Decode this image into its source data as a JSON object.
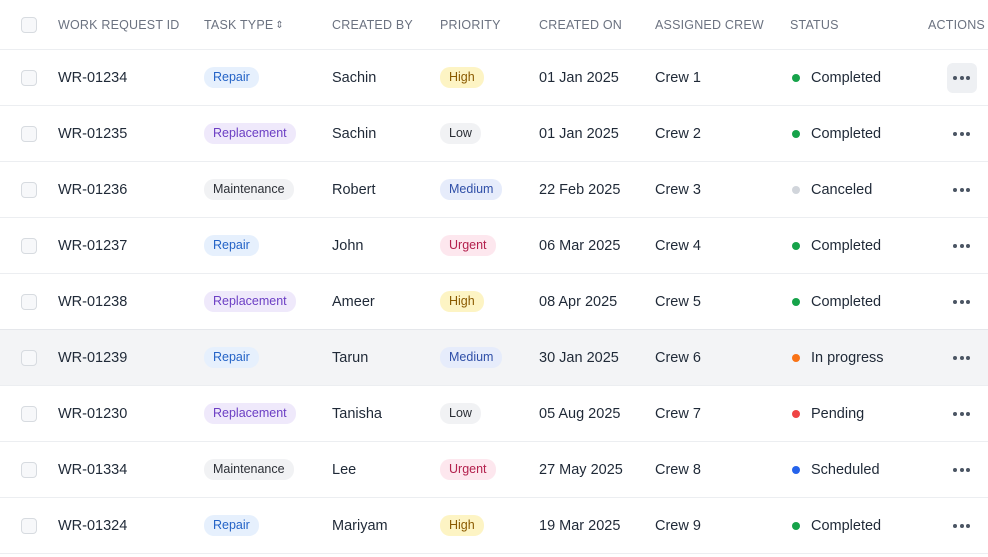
{
  "columns": {
    "work_request_id": "WORK REQUEST ID",
    "task_type": "TASK TYPE",
    "created_by": "CREATED BY",
    "priority": "PRIORITY",
    "created_on": "CREATED ON",
    "assigned_crew": "ASSIGNED CREW",
    "status": "STATUS",
    "actions": "ACTIONS"
  },
  "colors": {
    "completed": "#16a34a",
    "canceled": "#d1d5db",
    "in_progress": "#f97316",
    "pending": "#ef4444",
    "scheduled": "#2563eb"
  },
  "rows": [
    {
      "id": "WR-01234",
      "task_type": "Repair",
      "created_by": "Sachin",
      "priority": "High",
      "created_on": "01 Jan 2025",
      "crew": "Crew 1",
      "status": "Completed"
    },
    {
      "id": "WR-01235",
      "task_type": "Replacement",
      "created_by": "Sachin",
      "priority": "Low",
      "created_on": "01 Jan 2025",
      "crew": "Crew 2",
      "status": "Completed"
    },
    {
      "id": "WR-01236",
      "task_type": "Maintenance",
      "created_by": "Robert",
      "priority": "Medium",
      "created_on": "22 Feb 2025",
      "crew": "Crew 3",
      "status": "Canceled"
    },
    {
      "id": "WR-01237",
      "task_type": "Repair",
      "created_by": "John",
      "priority": "Urgent",
      "created_on": "06 Mar 2025",
      "crew": "Crew 4",
      "status": "Completed"
    },
    {
      "id": "WR-01238",
      "task_type": "Replacement",
      "created_by": "Ameer",
      "priority": "High",
      "created_on": "08 Apr 2025",
      "crew": "Crew 5",
      "status": "Completed"
    },
    {
      "id": "WR-01239",
      "task_type": "Repair",
      "created_by": "Tarun",
      "priority": "Medium",
      "created_on": "30 Jan 2025",
      "crew": "Crew 6",
      "status": "In progress"
    },
    {
      "id": "WR-01230",
      "task_type": "Replacement",
      "created_by": "Tanisha",
      "priority": "Low",
      "created_on": "05 Aug 2025",
      "crew": "Crew 7",
      "status": "Pending"
    },
    {
      "id": "WR-01334",
      "task_type": "Maintenance",
      "created_by": "Lee",
      "priority": "Urgent",
      "created_on": "27 May 2025",
      "crew": "Crew 8",
      "status": "Scheduled"
    },
    {
      "id": "WR-01324",
      "task_type": "Repair",
      "created_by": "Mariyam",
      "priority": "High",
      "created_on": "19 Mar 2025",
      "crew": "Crew 9",
      "status": "Completed"
    }
  ]
}
